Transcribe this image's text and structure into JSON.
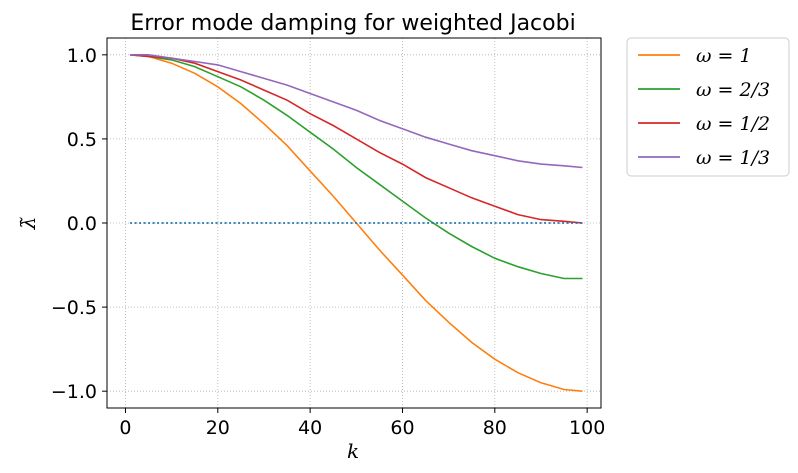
{
  "chart_data": {
    "type": "line",
    "title": "Error mode damping for weighted Jacobi",
    "xlabel": "k",
    "ylabel": "λ̃",
    "xlim": [
      -4,
      103
    ],
    "ylim": [
      -1.1,
      1.1
    ],
    "xticks": [
      0,
      20,
      40,
      60,
      80,
      100
    ],
    "xtick_labels": [
      "0",
      "20",
      "40",
      "60",
      "80",
      "100"
    ],
    "yticks": [
      1.0,
      0.5,
      0.0,
      -0.5,
      -1.0
    ],
    "ytick_labels": [
      "1.0",
      "0.5",
      "0.0",
      "−0.5",
      "−1.0"
    ],
    "grid": true,
    "legend_position": "outside-top-right",
    "x": [
      1,
      5,
      10,
      15,
      20,
      25,
      30,
      35,
      40,
      45,
      50,
      55,
      60,
      65,
      70,
      75,
      80,
      85,
      90,
      95,
      99
    ],
    "series": [
      {
        "name": "ω = 1",
        "color": "#ff7f0e",
        "values": [
          1.0,
          0.99,
          0.95,
          0.89,
          0.81,
          0.71,
          0.59,
          0.46,
          0.31,
          0.16,
          0.0,
          -0.16,
          -0.31,
          -0.46,
          -0.59,
          -0.71,
          -0.81,
          -0.89,
          -0.95,
          -0.99,
          -1.0
        ]
      },
      {
        "name": "ω = 2/3",
        "color": "#2ca02c",
        "values": [
          1.0,
          0.99,
          0.97,
          0.93,
          0.87,
          0.81,
          0.73,
          0.64,
          0.54,
          0.44,
          0.33,
          0.23,
          0.13,
          0.03,
          -0.06,
          -0.14,
          -0.21,
          -0.26,
          -0.3,
          -0.33,
          -0.33
        ]
      },
      {
        "name": "ω = 1/2",
        "color": "#d62728",
        "values": [
          1.0,
          0.99,
          0.98,
          0.95,
          0.9,
          0.85,
          0.79,
          0.73,
          0.65,
          0.58,
          0.5,
          0.42,
          0.35,
          0.27,
          0.21,
          0.15,
          0.1,
          0.05,
          0.02,
          0.01,
          0.0
        ]
      },
      {
        "name": "ω = 1/3",
        "color": "#9467bd",
        "values": [
          1.0,
          1.0,
          0.98,
          0.96,
          0.94,
          0.9,
          0.86,
          0.82,
          0.77,
          0.72,
          0.67,
          0.61,
          0.56,
          0.51,
          0.47,
          0.43,
          0.4,
          0.37,
          0.35,
          0.34,
          0.33
        ]
      },
      {
        "name": "",
        "color": "#1f77b4",
        "style": "dotted",
        "values": [
          0,
          0,
          0,
          0,
          0,
          0,
          0,
          0,
          0,
          0,
          0,
          0,
          0,
          0,
          0,
          0,
          0,
          0,
          0,
          0,
          0
        ]
      }
    ]
  }
}
